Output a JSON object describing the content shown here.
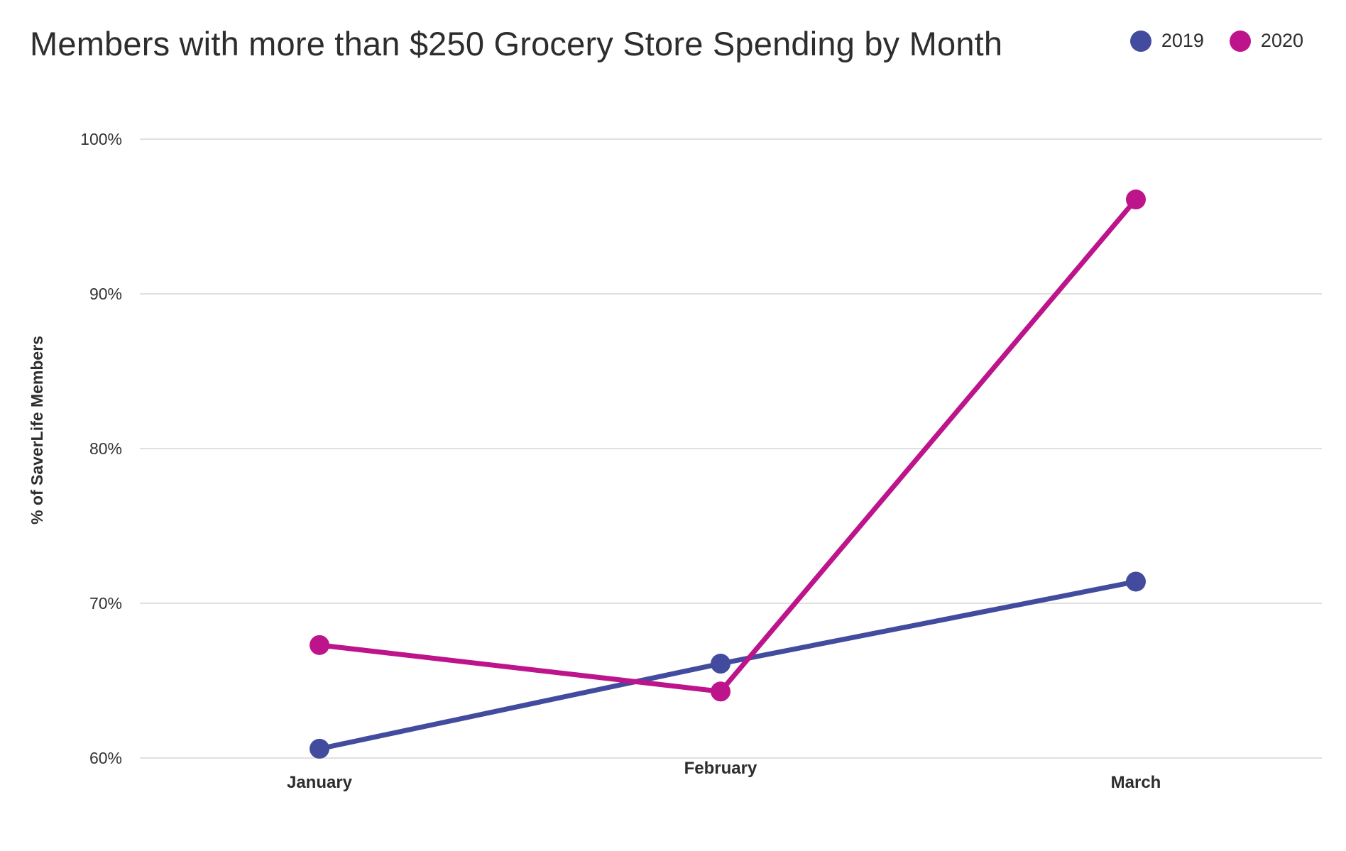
{
  "chart_data": {
    "type": "line",
    "title": "Members with more than $250 Grocery Store Spending by Month",
    "ylabel": "% of SaverLife Members",
    "xlabel": "",
    "categories": [
      "January",
      "February",
      "March"
    ],
    "y_ticks": [
      {
        "value": 60,
        "label": "60%"
      },
      {
        "value": 70,
        "label": "70%"
      },
      {
        "value": 80,
        "label": "80%"
      },
      {
        "value": 90,
        "label": "90%"
      },
      {
        "value": 100,
        "label": "100%"
      }
    ],
    "ylim": [
      60,
      100
    ],
    "grid": true,
    "legend_position": "top-right",
    "series": [
      {
        "name": "2019",
        "color": "#434b9e",
        "values": [
          60.6,
          66.1,
          71.4
        ]
      },
      {
        "name": "2020",
        "color": "#bd148c",
        "values": [
          67.3,
          64.3,
          96.1
        ]
      }
    ]
  }
}
